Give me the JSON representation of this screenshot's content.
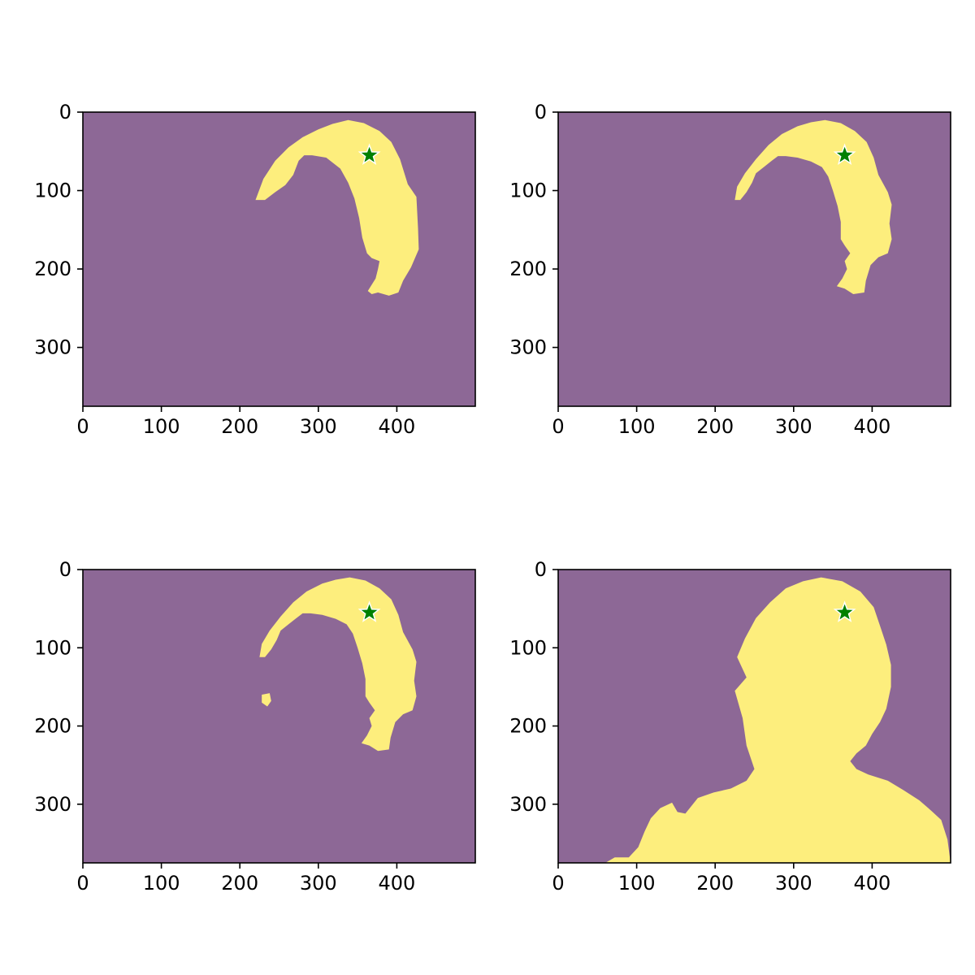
{
  "chart_data": [
    {
      "type": "image",
      "title": "",
      "xlabel": "",
      "ylabel": "",
      "image_size": [
        500,
        375
      ],
      "xlim": [
        0,
        500
      ],
      "ylim": [
        375,
        0
      ],
      "xticks": [
        0,
        100,
        200,
        300,
        400
      ],
      "yticks": [
        0,
        100,
        200,
        300
      ],
      "background_color": "#8d6896",
      "mask_color": "#fdee7d",
      "marker": {
        "x": 365,
        "y": 55,
        "shape": "star",
        "color": "#008000",
        "edge_color": "#ffffff"
      },
      "mask_polygons": [
        [
          [
            220,
            112
          ],
          [
            230,
            85
          ],
          [
            245,
            62
          ],
          [
            262,
            45
          ],
          [
            280,
            32
          ],
          [
            300,
            22
          ],
          [
            318,
            15
          ],
          [
            338,
            10
          ],
          [
            358,
            14
          ],
          [
            378,
            24
          ],
          [
            393,
            38
          ],
          [
            404,
            60
          ],
          [
            414,
            92
          ],
          [
            425,
            108
          ],
          [
            427,
            148
          ],
          [
            428,
            175
          ],
          [
            418,
            198
          ],
          [
            408,
            215
          ],
          [
            402,
            230
          ],
          [
            390,
            234
          ],
          [
            376,
            230
          ],
          [
            368,
            232
          ],
          [
            363,
            228
          ],
          [
            373,
            212
          ],
          [
            376,
            200
          ],
          [
            378,
            190
          ],
          [
            368,
            186
          ],
          [
            362,
            180
          ],
          [
            356,
            160
          ],
          [
            352,
            135
          ],
          [
            346,
            110
          ],
          [
            338,
            90
          ],
          [
            328,
            72
          ],
          [
            310,
            58
          ],
          [
            292,
            55
          ],
          [
            282,
            55
          ],
          [
            275,
            62
          ],
          [
            268,
            80
          ],
          [
            258,
            93
          ],
          [
            245,
            102
          ],
          [
            232,
            112
          ]
        ]
      ]
    },
    {
      "type": "image",
      "title": "",
      "xlabel": "",
      "ylabel": "",
      "image_size": [
        500,
        375
      ],
      "xlim": [
        0,
        500
      ],
      "ylim": [
        375,
        0
      ],
      "xticks": [
        0,
        100,
        200,
        300,
        400
      ],
      "yticks": [
        0,
        100,
        200,
        300
      ],
      "background_color": "#8d6896",
      "mask_color": "#fdee7d",
      "marker": {
        "x": 365,
        "y": 55,
        "shape": "star",
        "color": "#008000",
        "edge_color": "#ffffff"
      },
      "mask_polygons": [
        [
          [
            225,
            112
          ],
          [
            228,
            95
          ],
          [
            238,
            78
          ],
          [
            252,
            60
          ],
          [
            268,
            42
          ],
          [
            285,
            28
          ],
          [
            305,
            18
          ],
          [
            322,
            13
          ],
          [
            340,
            10
          ],
          [
            360,
            14
          ],
          [
            378,
            24
          ],
          [
            393,
            38
          ],
          [
            402,
            58
          ],
          [
            408,
            80
          ],
          [
            420,
            102
          ],
          [
            425,
            118
          ],
          [
            422,
            142
          ],
          [
            425,
            162
          ],
          [
            420,
            180
          ],
          [
            408,
            185
          ],
          [
            398,
            195
          ],
          [
            392,
            215
          ],
          [
            390,
            230
          ],
          [
            376,
            232
          ],
          [
            365,
            225
          ],
          [
            355,
            222
          ],
          [
            362,
            212
          ],
          [
            368,
            200
          ],
          [
            365,
            190
          ],
          [
            372,
            180
          ],
          [
            365,
            170
          ],
          [
            360,
            162
          ],
          [
            360,
            140
          ],
          [
            356,
            120
          ],
          [
            350,
            100
          ],
          [
            344,
            82
          ],
          [
            336,
            70
          ],
          [
            322,
            63
          ],
          [
            305,
            58
          ],
          [
            290,
            56
          ],
          [
            280,
            56
          ],
          [
            272,
            62
          ],
          [
            262,
            70
          ],
          [
            252,
            78
          ],
          [
            247,
            90
          ],
          [
            240,
            102
          ],
          [
            232,
            112
          ]
        ]
      ]
    },
    {
      "type": "image",
      "title": "",
      "xlabel": "",
      "ylabel": "",
      "image_size": [
        500,
        375
      ],
      "xlim": [
        0,
        500
      ],
      "ylim": [
        375,
        0
      ],
      "xticks": [
        0,
        100,
        200,
        300,
        400
      ],
      "yticks": [
        0,
        100,
        200,
        300
      ],
      "background_color": "#8d6896",
      "mask_color": "#fdee7d",
      "marker": {
        "x": 365,
        "y": 55,
        "shape": "star",
        "color": "#008000",
        "edge_color": "#ffffff"
      },
      "mask_polygons": [
        [
          [
            225,
            112
          ],
          [
            228,
            95
          ],
          [
            238,
            78
          ],
          [
            252,
            60
          ],
          [
            268,
            42
          ],
          [
            285,
            28
          ],
          [
            305,
            18
          ],
          [
            322,
            13
          ],
          [
            340,
            10
          ],
          [
            360,
            14
          ],
          [
            378,
            24
          ],
          [
            393,
            38
          ],
          [
            402,
            58
          ],
          [
            408,
            80
          ],
          [
            420,
            102
          ],
          [
            425,
            118
          ],
          [
            422,
            142
          ],
          [
            425,
            162
          ],
          [
            420,
            180
          ],
          [
            408,
            185
          ],
          [
            398,
            195
          ],
          [
            392,
            215
          ],
          [
            390,
            230
          ],
          [
            376,
            232
          ],
          [
            365,
            225
          ],
          [
            355,
            222
          ],
          [
            362,
            212
          ],
          [
            368,
            200
          ],
          [
            365,
            190
          ],
          [
            372,
            180
          ],
          [
            365,
            170
          ],
          [
            360,
            162
          ],
          [
            360,
            140
          ],
          [
            356,
            120
          ],
          [
            350,
            100
          ],
          [
            344,
            82
          ],
          [
            336,
            70
          ],
          [
            322,
            63
          ],
          [
            305,
            58
          ],
          [
            290,
            56
          ],
          [
            280,
            56
          ],
          [
            272,
            62
          ],
          [
            262,
            70
          ],
          [
            252,
            78
          ],
          [
            247,
            90
          ],
          [
            240,
            102
          ],
          [
            232,
            112
          ]
        ],
        [
          [
            228,
            160
          ],
          [
            238,
            158
          ],
          [
            240,
            168
          ],
          [
            235,
            175
          ],
          [
            228,
            170
          ]
        ]
      ]
    },
    {
      "type": "image",
      "title": "",
      "xlabel": "",
      "ylabel": "",
      "image_size": [
        500,
        375
      ],
      "xlim": [
        0,
        500
      ],
      "ylim": [
        375,
        0
      ],
      "xticks": [
        0,
        100,
        200,
        300,
        400
      ],
      "yticks": [
        0,
        100,
        200,
        300
      ],
      "background_color": "#8d6896",
      "mask_color": "#fdee7d",
      "marker": {
        "x": 365,
        "y": 55,
        "shape": "star",
        "color": "#008000",
        "edge_color": "#ffffff"
      },
      "mask_polygons": [
        [
          [
            60,
            375
          ],
          [
            72,
            368
          ],
          [
            90,
            368
          ],
          [
            102,
            355
          ],
          [
            110,
            335
          ],
          [
            118,
            318
          ],
          [
            130,
            305
          ],
          [
            145,
            298
          ],
          [
            152,
            310
          ],
          [
            162,
            312
          ],
          [
            170,
            302
          ],
          [
            178,
            292
          ],
          [
            198,
            285
          ],
          [
            220,
            280
          ],
          [
            240,
            270
          ],
          [
            250,
            255
          ],
          [
            240,
            225
          ],
          [
            235,
            190
          ],
          [
            225,
            155
          ],
          [
            240,
            138
          ],
          [
            228,
            112
          ],
          [
            238,
            88
          ],
          [
            252,
            62
          ],
          [
            270,
            42
          ],
          [
            290,
            24
          ],
          [
            312,
            15
          ],
          [
            335,
            10
          ],
          [
            362,
            15
          ],
          [
            385,
            28
          ],
          [
            402,
            48
          ],
          [
            410,
            72
          ],
          [
            418,
            96
          ],
          [
            424,
            122
          ],
          [
            424,
            150
          ],
          [
            418,
            178
          ],
          [
            410,
            195
          ],
          [
            400,
            210
          ],
          [
            392,
            225
          ],
          [
            380,
            235
          ],
          [
            372,
            245
          ],
          [
            380,
            255
          ],
          [
            395,
            262
          ],
          [
            420,
            270
          ],
          [
            440,
            282
          ],
          [
            460,
            295
          ],
          [
            475,
            308
          ],
          [
            488,
            320
          ],
          [
            496,
            345
          ],
          [
            500,
            375
          ]
        ]
      ]
    }
  ]
}
